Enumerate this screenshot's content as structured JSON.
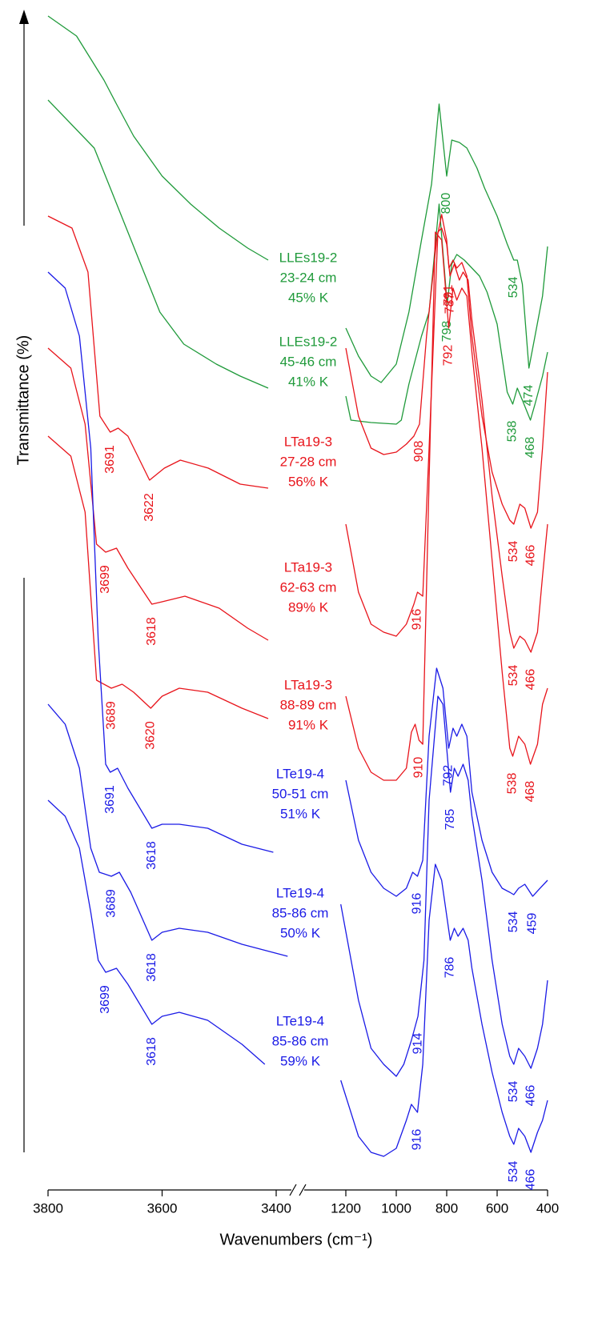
{
  "chart_data": {
    "type": "line",
    "x_label": "Wavenumbers (cm⁻¹)",
    "y_label": "Transmittance (%)",
    "x_segments": [
      {
        "xlim": [
          3800,
          3400
        ],
        "xticks": [
          3800,
          3600,
          3400
        ]
      },
      {
        "xlim": [
          1200,
          400
        ],
        "xticks": [
          1200,
          1000,
          800,
          600,
          400
        ]
      }
    ],
    "ylim": [
      0,
      147.2
    ],
    "series": [
      {
        "name": "LLEs19-2",
        "depth": "23-24 cm",
        "kaolinite": "45% K",
        "color": "#1f9a3a",
        "x": [
          3800,
          3750,
          3702,
          3680,
          3650,
          3600,
          3550,
          3500,
          3450,
          3414,
          null,
          1200,
          1150,
          1100,
          1060,
          1000,
          950,
          900,
          860,
          830,
          800,
          780,
          750,
          720,
          680,
          650,
          600,
          560,
          534,
          520,
          500,
          474,
          450,
          420,
          400
        ],
        "values": [
          146.7,
          144.2,
          138.7,
          135.7,
          131.7,
          126.7,
          123.2,
          120.2,
          117.7,
          116.2,
          null,
          107.7,
          104.2,
          101.7,
          100.9,
          103.2,
          109.7,
          118.7,
          125.7,
          135.7,
          126.7,
          131.2,
          130.9,
          130.2,
          127.7,
          125.2,
          121.7,
          118.2,
          116.2,
          116.2,
          113.2,
          102.7,
          106.7,
          111.7,
          117.9
        ],
        "peaks": [
          800,
          534,
          474
        ]
      },
      {
        "name": "LLEs19-2",
        "depth": "45-46 cm",
        "kaolinite": "41% K",
        "color": "#1f9a3a",
        "x": [
          3800,
          3719,
          3688,
          3632,
          3604,
          3562,
          3505,
          3463,
          3414,
          null,
          1200,
          1180,
          1100,
          1000,
          980,
          950,
          900,
          870,
          830,
          798,
          780,
          760,
          730,
          700,
          670,
          640,
          600,
          560,
          538,
          520,
          500,
          468,
          450,
          420,
          400
        ],
        "values": [
          136.2,
          130.2,
          124.7,
          114.7,
          109.7,
          105.7,
          103.2,
          101.7,
          100.2,
          null,
          99.2,
          96.2,
          95.9,
          95.7,
          96.2,
          100.7,
          106.7,
          109.7,
          123.2,
          110.7,
          115.7,
          116.9,
          116.2,
          115.2,
          114.2,
          112.2,
          108.2,
          99.7,
          98.2,
          100.2,
          98.7,
          96.2,
          98.2,
          101.7,
          104.7
        ],
        "peaks": [
          798,
          538,
          468
        ]
      },
      {
        "name": "LTa19-3",
        "depth": "27-28 cm",
        "kaolinite": "56% K",
        "color": "#e8141b",
        "x": [
          3800,
          3758,
          3730,
          3709,
          3691,
          3677,
          3660,
          3622,
          3596,
          3568,
          3519,
          3463,
          3414,
          null,
          1200,
          1150,
          1100,
          1050,
          1000,
          960,
          930,
          908,
          880,
          840,
          820,
          800,
          791,
          775,
          760,
          740,
          720,
          700,
          660,
          620,
          580,
          550,
          534,
          510,
          490,
          466,
          440,
          420,
          400
        ],
        "values": [
          121.7,
          120.2,
          114.7,
          96.7,
          94.7,
          95.2,
          94.2,
          88.7,
          90.2,
          91.2,
          90.2,
          88.2,
          87.7,
          null,
          105.2,
          96.7,
          92.7,
          91.9,
          92.2,
          93.2,
          94.2,
          95.7,
          106.7,
          118.7,
          121.9,
          118.7,
          115.2,
          116.2,
          115.2,
          115.9,
          114.2,
          106.7,
          96.7,
          89.7,
          85.7,
          83.7,
          83.2,
          85.7,
          85.2,
          82.7,
          84.7,
          92.7,
          102.2
        ],
        "peaks": [
          3691,
          3622,
          908,
          791,
          534,
          466
        ]
      },
      {
        "name": "LTa19-3",
        "depth": "62-63 cm",
        "kaolinite": "89% K",
        "color": "#e8141b",
        "x": [
          3800,
          3760,
          3735,
          3715,
          3699,
          3680,
          3660,
          3618,
          3600,
          3560,
          3500,
          3450,
          3414,
          null,
          1200,
          1150,
          1100,
          1050,
          1000,
          960,
          930,
          916,
          895,
          870,
          835,
          820,
          800,
          787,
          770,
          750,
          735,
          715,
          700,
          660,
          620,
          580,
          550,
          534,
          510,
          490,
          466,
          440,
          420,
          400
        ],
        "values": [
          105.2,
          102.7,
          95.7,
          80.7,
          79.7,
          80.2,
          77.7,
          73.2,
          73.5,
          74.2,
          72.7,
          70.2,
          68.7,
          null,
          83.2,
          74.7,
          70.7,
          69.7,
          69.2,
          70.7,
          73.2,
          74.7,
          74.2,
          92.7,
          119.7,
          120.2,
          118.2,
          114.2,
          115.7,
          113.7,
          114.7,
          113.7,
          108.7,
          98.7,
          86.7,
          76.7,
          69.7,
          67.7,
          69.2,
          68.7,
          67.2,
          69.7,
          76.7,
          83.2
        ],
        "peaks": [
          3699,
          3618,
          916,
          787,
          534,
          466
        ]
      },
      {
        "name": "LTa19-3",
        "depth": "88-89 cm",
        "kaolinite": "91% K",
        "color": "#e8141b",
        "x": [
          3800,
          3760,
          3735,
          3715,
          3689,
          3670,
          3650,
          3620,
          3600,
          3570,
          3520,
          3460,
          3414,
          null,
          1200,
          1150,
          1100,
          1050,
          1000,
          960,
          940,
          925,
          910,
          895,
          870,
          845,
          820,
          792,
          775,
          760,
          740,
          720,
          700,
          660,
          620,
          580,
          550,
          538,
          515,
          490,
          468,
          440,
          420,
          400
        ],
        "values": [
          94.2,
          91.7,
          84.7,
          63.7,
          62.7,
          63.2,
          62.2,
          60.2,
          61.7,
          62.7,
          62.2,
          60.2,
          58.9,
          null,
          61.7,
          55.2,
          52.2,
          51.2,
          51.2,
          52.7,
          57.2,
          58.2,
          56.2,
          55.7,
          88.7,
          119.7,
          118.7,
          107.7,
          112.7,
          111.2,
          112.7,
          111.7,
          104.7,
          92.7,
          78.7,
          64.7,
          55.2,
          54.2,
          56.7,
          55.7,
          53.2,
          55.7,
          60.7,
          62.7
        ],
        "peaks": [
          3689,
          3620,
          910,
          792,
          538,
          468
        ]
      },
      {
        "name": "LTe19-4",
        "depth": "50-51 cm",
        "kaolinite": "51% K",
        "color": "#1a1ae6",
        "x": [
          3800,
          3770,
          3745,
          3725,
          3712,
          3699,
          3691,
          3678,
          3660,
          3618,
          3600,
          3570,
          3520,
          3460,
          3405,
          null,
          1200,
          1150,
          1100,
          1050,
          1000,
          960,
          935,
          916,
          895,
          870,
          840,
          815,
          792,
          775,
          760,
          740,
          720,
          700,
          660,
          620,
          580,
          550,
          534,
          515,
          490,
          459,
          430,
          400
        ],
        "values": [
          114.7,
          112.7,
          106.7,
          92.7,
          68.7,
          53.2,
          52.2,
          52.7,
          50.2,
          45.2,
          45.7,
          45.7,
          45.2,
          43.2,
          42.2,
          null,
          51.2,
          43.7,
          39.7,
          37.7,
          36.7,
          37.7,
          39.7,
          39.2,
          41.2,
          56.7,
          65.2,
          62.7,
          55.2,
          57.7,
          56.7,
          58.2,
          56.7,
          49.7,
          43.7,
          39.7,
          37.7,
          37.2,
          36.9,
          37.7,
          38.2,
          36.7,
          37.7,
          38.7
        ],
        "peaks": [
          3691,
          3618,
          916,
          792,
          534,
          459
        ]
      },
      {
        "name": "LTe19-4",
        "depth": "85-86 cm",
        "kaolinite": "50% K",
        "color": "#1a1ae6",
        "x": [
          3800,
          3770,
          3745,
          3725,
          3710,
          3689,
          3675,
          3655,
          3618,
          3600,
          3570,
          3520,
          3460,
          3380,
          null,
          1220,
          1150,
          1100,
          1050,
          1000,
          970,
          940,
          914,
          890,
          870,
          835,
          815,
          785,
          770,
          755,
          735,
          715,
          700,
          660,
          620,
          580,
          550,
          534,
          515,
          490,
          466,
          440,
          420,
          400
        ],
        "values": [
          60.7,
          58.2,
          52.7,
          42.7,
          39.7,
          39.2,
          39.7,
          37.2,
          31.2,
          32.2,
          32.7,
          32.2,
          30.7,
          29.2,
          null,
          35.7,
          23.7,
          17.7,
          15.7,
          14.2,
          15.7,
          18.7,
          21.7,
          28.7,
          48.7,
          61.7,
          60.7,
          49.7,
          52.7,
          51.7,
          53.2,
          51.2,
          46.7,
          38.7,
          28.7,
          20.7,
          16.7,
          15.7,
          17.7,
          16.7,
          15.2,
          17.7,
          20.7,
          26.2
        ],
        "peaks": [
          3689,
          3618,
          914,
          785,
          534,
          466
        ]
      },
      {
        "name": "LTe19-4",
        "depth": "85-86 cm",
        "kaolinite": "59% K",
        "color": "#1a1ae6",
        "x": [
          3800,
          3770,
          3745,
          3725,
          3712,
          3699,
          3680,
          3660,
          3618,
          3600,
          3570,
          3520,
          3460,
          3420,
          null,
          1220,
          1150,
          1100,
          1050,
          1000,
          960,
          940,
          916,
          895,
          870,
          845,
          820,
          786,
          770,
          755,
          735,
          715,
          700,
          660,
          620,
          580,
          550,
          534,
          515,
          490,
          466,
          440,
          420,
          400
        ],
        "values": [
          48.7,
          46.7,
          42.7,
          34.7,
          28.7,
          27.2,
          27.7,
          25.7,
          20.7,
          21.7,
          22.2,
          21.2,
          18.2,
          15.7,
          null,
          13.7,
          6.7,
          4.7,
          4.2,
          5.2,
          8.7,
          10.7,
          9.7,
          15.7,
          33.7,
          40.7,
          38.7,
          31.2,
          32.7,
          31.7,
          32.7,
          31.2,
          27.7,
          20.7,
          14.7,
          9.7,
          6.7,
          5.7,
          7.7,
          6.7,
          4.7,
          7.2,
          8.7,
          11.2
        ],
        "peaks": [
          3699,
          3618,
          916,
          786,
          534,
          466
        ]
      }
    ]
  }
}
